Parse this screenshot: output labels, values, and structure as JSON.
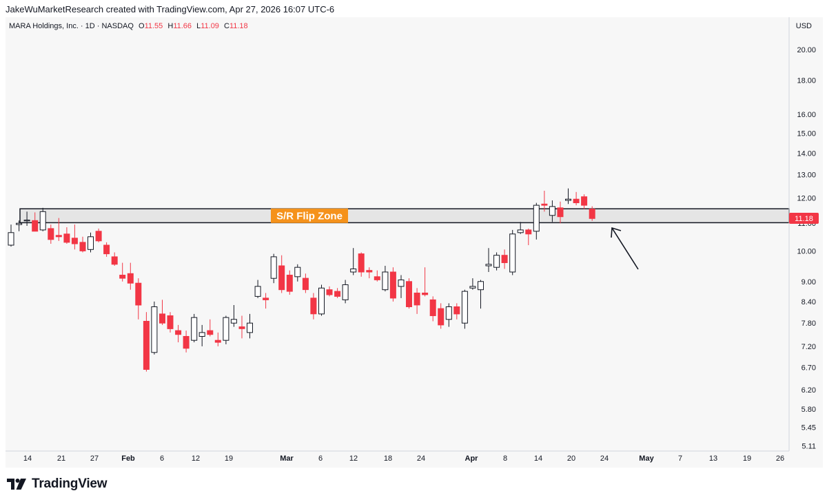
{
  "header": {
    "attribution": "JakeWuMarketResearch created with TradingView.com, Apr 27, 2026 16:07 UTC-6"
  },
  "legend": {
    "symbol": "MARA Holdings, Inc. · 1D · NASDAQ",
    "o_label": "O",
    "o_value": "11.55",
    "h_label": "H",
    "h_value": "11.66",
    "l_label": "L",
    "l_value": "11.09",
    "c_label": "C",
    "c_value": "11.18"
  },
  "currency": "USD",
  "last_price_label": "11.18",
  "zone_label": "S/R Flip Zone",
  "footer": {
    "brand": "TradingView"
  },
  "colors": {
    "up": "#ffffff",
    "down": "#f23645",
    "zone_fill": "#e5e5e5",
    "label_bg": "#f5921b",
    "price_tag": "#f23645"
  },
  "chart_data": {
    "type": "candlestick",
    "scale": "log",
    "y_ticks": [
      "20.00",
      "18.00",
      "16.00",
      "15.00",
      "14.00",
      "13.00",
      "12.00",
      "11.00",
      "10.00",
      "9.00",
      "8.40",
      "7.80",
      "7.20",
      "6.70",
      "6.20",
      "5.80",
      "5.45",
      "5.11"
    ],
    "x_ticks": [
      {
        "label": "14",
        "month": false
      },
      {
        "label": "21",
        "month": false
      },
      {
        "label": "27",
        "month": false
      },
      {
        "label": "Feb",
        "month": true
      },
      {
        "label": "6",
        "month": false
      },
      {
        "label": "12",
        "month": false
      },
      {
        "label": "19",
        "month": false
      },
      {
        "label": "Mar",
        "month": true
      },
      {
        "label": "6",
        "month": false
      },
      {
        "label": "12",
        "month": false
      },
      {
        "label": "18",
        "month": false
      },
      {
        "label": "24",
        "month": false
      },
      {
        "label": "Apr",
        "month": true
      },
      {
        "label": "8",
        "month": false
      },
      {
        "label": "14",
        "month": false
      },
      {
        "label": "20",
        "month": false
      },
      {
        "label": "24",
        "month": false
      },
      {
        "label": "May",
        "month": true
      },
      {
        "label": "7",
        "month": false
      },
      {
        "label": "13",
        "month": false
      },
      {
        "label": "19",
        "month": false
      },
      {
        "label": "26",
        "month": false
      }
    ],
    "zone": {
      "low": 11.02,
      "high": 11.56
    },
    "candles": [
      {
        "o": 10.2,
        "h": 10.95,
        "l": 10.15,
        "c": 10.65
      },
      {
        "o": 10.95,
        "h": 11.1,
        "l": 10.7,
        "c": 11.0
      },
      {
        "o": 11.1,
        "h": 11.45,
        "l": 10.9,
        "c": 11.12
      },
      {
        "o": 11.1,
        "h": 11.42,
        "l": 10.75,
        "c": 10.7
      },
      {
        "o": 10.75,
        "h": 11.6,
        "l": 10.7,
        "c": 11.45
      },
      {
        "o": 10.8,
        "h": 10.95,
        "l": 10.25,
        "c": 10.4
      },
      {
        "o": 10.55,
        "h": 11.2,
        "l": 10.35,
        "c": 10.5
      },
      {
        "o": 10.6,
        "h": 10.85,
        "l": 10.25,
        "c": 10.3
      },
      {
        "o": 10.45,
        "h": 10.95,
        "l": 10.05,
        "c": 10.25
      },
      {
        "o": 10.3,
        "h": 10.5,
        "l": 9.95,
        "c": 10.0
      },
      {
        "o": 10.05,
        "h": 10.65,
        "l": 9.95,
        "c": 10.5
      },
      {
        "o": 10.7,
        "h": 10.8,
        "l": 10.3,
        "c": 10.35
      },
      {
        "o": 10.2,
        "h": 10.3,
        "l": 9.8,
        "c": 9.9
      },
      {
        "o": 9.8,
        "h": 9.95,
        "l": 9.5,
        "c": 9.55
      },
      {
        "o": 9.2,
        "h": 9.6,
        "l": 9.0,
        "c": 9.1
      },
      {
        "o": 9.25,
        "h": 9.6,
        "l": 8.75,
        "c": 8.95
      },
      {
        "o": 8.95,
        "h": 9.1,
        "l": 7.9,
        "c": 8.3
      },
      {
        "o": 7.85,
        "h": 8.1,
        "l": 6.6,
        "c": 6.65
      },
      {
        "o": 7.05,
        "h": 8.4,
        "l": 7.0,
        "c": 8.25
      },
      {
        "o": 8.05,
        "h": 8.45,
        "l": 7.75,
        "c": 7.8
      },
      {
        "o": 8.0,
        "h": 8.1,
        "l": 7.55,
        "c": 7.65
      },
      {
        "o": 7.6,
        "h": 7.75,
        "l": 7.3,
        "c": 7.5
      },
      {
        "o": 7.45,
        "h": 7.6,
        "l": 7.05,
        "c": 7.15
      },
      {
        "o": 7.35,
        "h": 8.05,
        "l": 7.3,
        "c": 7.95
      },
      {
        "o": 7.45,
        "h": 7.75,
        "l": 7.2,
        "c": 7.55
      },
      {
        "o": 7.6,
        "h": 7.9,
        "l": 7.45,
        "c": 7.5
      },
      {
        "o": 7.35,
        "h": 7.55,
        "l": 7.2,
        "c": 7.3
      },
      {
        "o": 7.35,
        "h": 8.0,
        "l": 7.25,
        "c": 7.95
      },
      {
        "o": 7.8,
        "h": 8.3,
        "l": 7.7,
        "c": 7.9
      },
      {
        "o": 7.7,
        "h": 8.0,
        "l": 7.4,
        "c": 7.65
      },
      {
        "o": 7.55,
        "h": 8.05,
        "l": 7.4,
        "c": 7.8
      },
      {
        "o": 8.55,
        "h": 9.05,
        "l": 8.5,
        "c": 8.85
      },
      {
        "o": 8.5,
        "h": 8.65,
        "l": 8.2,
        "c": 8.45
      },
      {
        "o": 9.1,
        "h": 9.9,
        "l": 8.95,
        "c": 9.8
      },
      {
        "o": 9.5,
        "h": 9.85,
        "l": 8.65,
        "c": 8.75
      },
      {
        "o": 9.2,
        "h": 9.35,
        "l": 8.6,
        "c": 8.7
      },
      {
        "o": 9.15,
        "h": 9.55,
        "l": 9.0,
        "c": 9.45
      },
      {
        "o": 9.1,
        "h": 9.25,
        "l": 8.65,
        "c": 8.75
      },
      {
        "o": 8.5,
        "h": 8.65,
        "l": 7.9,
        "c": 8.05
      },
      {
        "o": 8.05,
        "h": 8.9,
        "l": 8.0,
        "c": 8.8
      },
      {
        "o": 8.75,
        "h": 8.85,
        "l": 8.55,
        "c": 8.6
      },
      {
        "o": 8.7,
        "h": 8.8,
        "l": 8.5,
        "c": 8.55
      },
      {
        "o": 8.45,
        "h": 9.05,
        "l": 8.35,
        "c": 8.9
      },
      {
        "o": 9.3,
        "h": 10.1,
        "l": 9.2,
        "c": 9.4
      },
      {
        "o": 9.9,
        "h": 9.95,
        "l": 9.15,
        "c": 9.3
      },
      {
        "o": 9.35,
        "h": 9.45,
        "l": 9.1,
        "c": 9.3
      },
      {
        "o": 9.15,
        "h": 9.35,
        "l": 9.0,
        "c": 9.05
      },
      {
        "o": 8.75,
        "h": 9.5,
        "l": 8.7,
        "c": 9.3
      },
      {
        "o": 9.3,
        "h": 9.45,
        "l": 8.4,
        "c": 8.5
      },
      {
        "o": 8.85,
        "h": 9.2,
        "l": 8.5,
        "c": 9.05
      },
      {
        "o": 9.0,
        "h": 9.1,
        "l": 8.2,
        "c": 8.25
      },
      {
        "o": 8.65,
        "h": 8.8,
        "l": 8.05,
        "c": 8.3
      },
      {
        "o": 8.65,
        "h": 9.45,
        "l": 8.55,
        "c": 8.6
      },
      {
        "o": 8.45,
        "h": 8.55,
        "l": 7.85,
        "c": 8.0
      },
      {
        "o": 8.2,
        "h": 8.35,
        "l": 7.65,
        "c": 7.75
      },
      {
        "o": 7.9,
        "h": 8.35,
        "l": 7.7,
        "c": 8.25
      },
      {
        "o": 8.25,
        "h": 8.35,
        "l": 7.9,
        "c": 8.05
      },
      {
        "o": 7.8,
        "h": 8.75,
        "l": 7.65,
        "c": 8.7
      },
      {
        "o": 8.8,
        "h": 9.1,
        "l": 8.75,
        "c": 8.85
      },
      {
        "o": 8.75,
        "h": 9.05,
        "l": 8.2,
        "c": 9.0
      },
      {
        "o": 9.5,
        "h": 10.1,
        "l": 9.3,
        "c": 9.55
      },
      {
        "o": 9.45,
        "h": 9.95,
        "l": 9.35,
        "c": 9.85
      },
      {
        "o": 9.85,
        "h": 10.05,
        "l": 9.4,
        "c": 9.6
      },
      {
        "o": 9.3,
        "h": 10.75,
        "l": 9.2,
        "c": 10.6
      },
      {
        "o": 10.65,
        "h": 11.05,
        "l": 10.6,
        "c": 10.75
      },
      {
        "o": 10.75,
        "h": 10.8,
        "l": 10.2,
        "c": 10.6
      },
      {
        "o": 10.7,
        "h": 11.8,
        "l": 10.4,
        "c": 11.7
      },
      {
        "o": 11.75,
        "h": 12.3,
        "l": 11.45,
        "c": 11.7
      },
      {
        "o": 11.3,
        "h": 11.9,
        "l": 11.05,
        "c": 11.65
      },
      {
        "o": 11.6,
        "h": 11.85,
        "l": 11.0,
        "c": 11.25
      },
      {
        "o": 11.9,
        "h": 12.4,
        "l": 11.75,
        "c": 11.95
      },
      {
        "o": 11.95,
        "h": 12.25,
        "l": 11.7,
        "c": 11.8
      },
      {
        "o": 12.05,
        "h": 12.15,
        "l": 11.55,
        "c": 11.7
      },
      {
        "o": 11.55,
        "h": 11.66,
        "l": 11.09,
        "c": 11.18
      }
    ]
  }
}
